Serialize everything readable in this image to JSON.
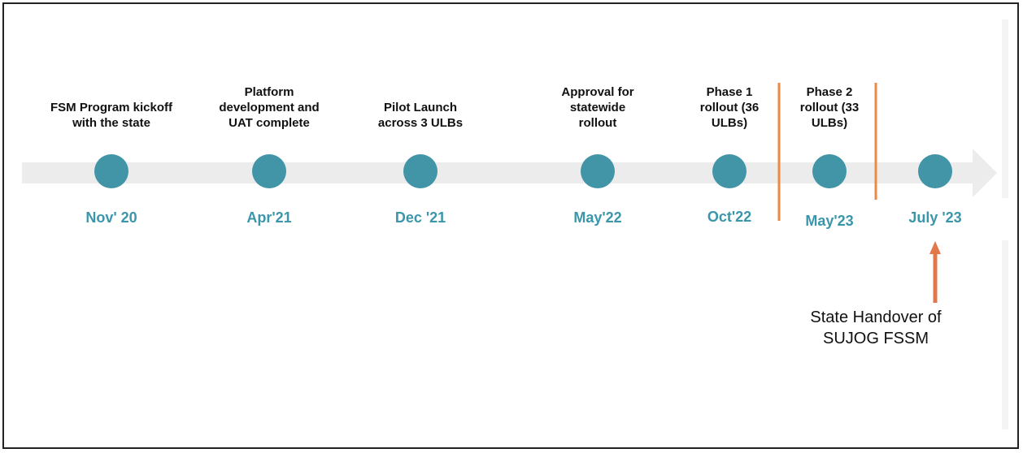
{
  "colors": {
    "track": "#ececec",
    "milestone": "#4294a7",
    "date_text": "#3a96ab",
    "divider": "#ec8a45",
    "callout_arrow": "#e2774a"
  },
  "milestones": [
    {
      "title_lines": [
        "FSM Program kickoff",
        "with the state"
      ],
      "date": "Nov' 20"
    },
    {
      "title_lines": [
        "Platform",
        "development and",
        "UAT complete"
      ],
      "date": "Apr'21"
    },
    {
      "title_lines": [
        "Pilot Launch",
        "across 3 ULBs"
      ],
      "date": "Dec '21"
    },
    {
      "title_lines": [
        "Approval for",
        "statewide",
        "rollout"
      ],
      "date": "May'22"
    },
    {
      "title_lines": [
        "Phase 1",
        "rollout (36",
        "ULBs)"
      ],
      "date": "Oct'22"
    },
    {
      "title_lines": [
        "Phase 2",
        "rollout (33",
        "ULBs)"
      ],
      "date": "May'23"
    },
    {
      "title_lines": [],
      "date": "July '23"
    }
  ],
  "callout": {
    "lines": [
      "State Handover of",
      "SUJOG FSSM"
    ]
  }
}
